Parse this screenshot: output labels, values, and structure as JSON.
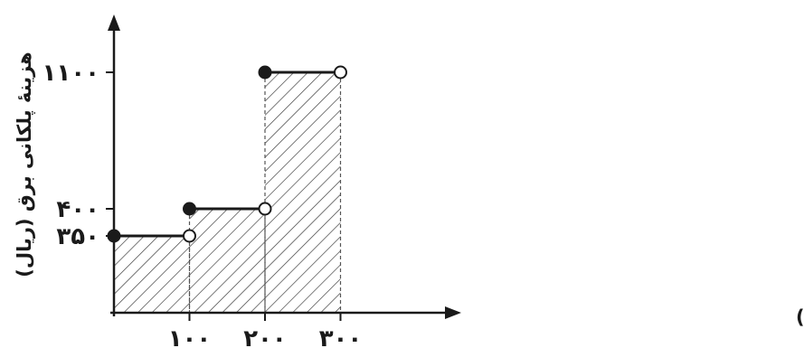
{
  "chart_data": {
    "type": "step",
    "xlabel": "مصرف برق (کیلووات ساعت)",
    "ylabel": "هزینهٔ پلکانی برق (ریال)",
    "x_ticks": [
      {
        "value": 100,
        "label": "۱۰۰"
      },
      {
        "value": 200,
        "label": "۲۰۰"
      },
      {
        "value": 300,
        "label": "۳۰۰"
      }
    ],
    "y_ticks": [
      {
        "value": 350,
        "label": "۳۵۰"
      },
      {
        "value": 400,
        "label": "۴۰۰"
      },
      {
        "value": 1100,
        "label": "۱۱۰۰"
      }
    ],
    "steps": [
      {
        "x_start": 0,
        "x_end": 100,
        "y": 350,
        "start_closed": true,
        "end_closed": false
      },
      {
        "x_start": 100,
        "x_end": 200,
        "y": 400,
        "start_closed": true,
        "end_closed": false
      },
      {
        "x_start": 200,
        "x_end": 300,
        "y": 1100,
        "start_closed": true,
        "end_closed": false
      }
    ],
    "shaded_region_under_steps": true,
    "grid": false
  }
}
